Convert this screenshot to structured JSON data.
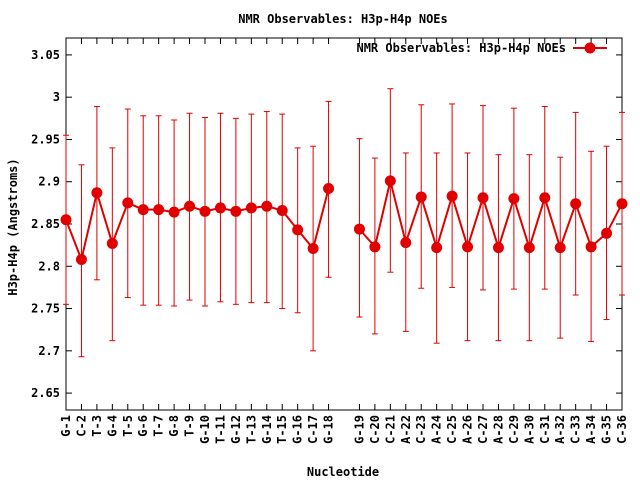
{
  "chart_data": {
    "type": "line",
    "title": "NMR Observables: H3p-H4p NOEs",
    "xlabel": "Nucleotide",
    "ylabel": "H3p-H4p (Angstroms)",
    "ylim": [
      2.63,
      3.07
    ],
    "yticks": [
      "2.65",
      "2.7",
      "2.75",
      "2.8",
      "2.85",
      "2.9",
      "2.95",
      "3",
      "3.05"
    ],
    "grid": false,
    "legend_position": "top-right",
    "series": [
      {
        "name": "NMR Observables: H3p-H4p NOEs",
        "color": "#e00000",
        "marker": "circle",
        "error_bars": true,
        "segments": [
          {
            "labels": [
              "G-1",
              "C-2",
              "T-3",
              "G-4",
              "T-5",
              "G-6",
              "T-7",
              "G-8",
              "T-9",
              "G-10",
              "T-11",
              "G-12",
              "T-13",
              "G-14",
              "T-15",
              "G-16",
              "C-17",
              "G-18"
            ],
            "values": [
              2.855,
              2.808,
              2.887,
              2.827,
              2.875,
              2.867,
              2.867,
              2.864,
              2.871,
              2.865,
              2.869,
              2.865,
              2.869,
              2.871,
              2.866,
              2.843,
              2.821,
              2.892
            ],
            "lower": [
              2.755,
              2.693,
              2.784,
              2.712,
              2.763,
              2.754,
              2.754,
              2.753,
              2.76,
              2.753,
              2.758,
              2.755,
              2.757,
              2.757,
              2.75,
              2.745,
              2.7,
              2.787
            ],
            "upper": [
              2.955,
              2.92,
              2.989,
              2.94,
              2.986,
              2.978,
              2.978,
              2.973,
              2.981,
              2.976,
              2.981,
              2.975,
              2.98,
              2.983,
              2.98,
              2.94,
              2.942,
              2.995
            ]
          },
          {
            "labels": [
              "G-19",
              "C-20",
              "C-21",
              "A-22",
              "C-23",
              "A-24",
              "C-25",
              "A-26",
              "C-27",
              "A-28",
              "C-29",
              "A-30",
              "C-31",
              "A-32",
              "C-33",
              "A-34",
              "G-35",
              "C-36"
            ],
            "values": [
              2.844,
              2.823,
              2.901,
              2.828,
              2.882,
              2.822,
              2.883,
              2.823,
              2.881,
              2.822,
              2.88,
              2.822,
              2.881,
              2.822,
              2.874,
              2.823,
              2.839,
              2.874
            ],
            "lower": [
              2.74,
              2.72,
              2.793,
              2.723,
              2.774,
              2.709,
              2.775,
              2.712,
              2.772,
              2.712,
              2.773,
              2.712,
              2.773,
              2.715,
              2.766,
              2.711,
              2.737,
              2.766
            ],
            "upper": [
              2.951,
              2.928,
              3.01,
              2.934,
              2.991,
              2.934,
              2.992,
              2.934,
              2.99,
              2.932,
              2.987,
              2.932,
              2.989,
              2.929,
              2.982,
              2.936,
              2.942,
              2.982
            ]
          }
        ]
      }
    ]
  }
}
